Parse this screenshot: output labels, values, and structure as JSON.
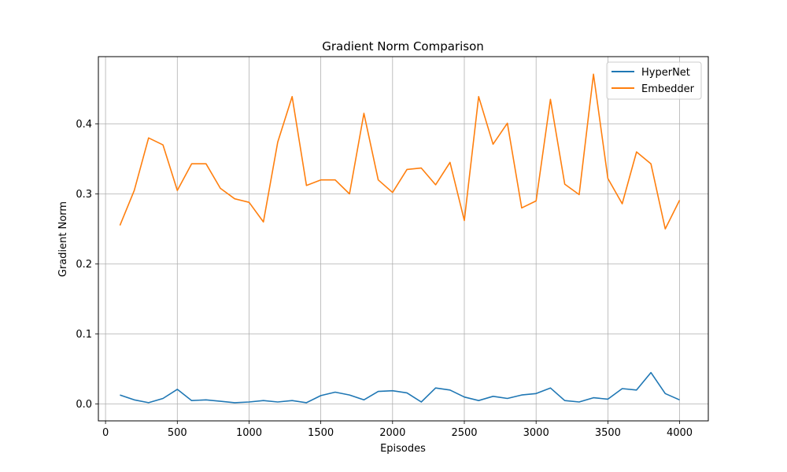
{
  "chart_data": {
    "type": "line",
    "title": "Gradient Norm Comparison",
    "xlabel": "Episodes",
    "ylabel": "Gradient Norm",
    "xlim": [
      -50,
      4200
    ],
    "ylim": [
      -0.024,
      0.496
    ],
    "xticks": [
      0,
      500,
      1000,
      1500,
      2000,
      2500,
      3000,
      3500,
      4000
    ],
    "yticks": [
      0.0,
      0.1,
      0.2,
      0.3,
      0.4
    ],
    "ytick_labels": [
      "0.0",
      "0.1",
      "0.2",
      "0.3",
      "0.4"
    ],
    "grid": true,
    "legend_position": "top-right",
    "x": [
      100,
      200,
      300,
      400,
      500,
      600,
      700,
      800,
      900,
      1000,
      1100,
      1200,
      1300,
      1400,
      1500,
      1600,
      1700,
      1800,
      1900,
      2000,
      2100,
      2200,
      2300,
      2400,
      2500,
      2600,
      2700,
      2800,
      2900,
      3000,
      3100,
      3200,
      3300,
      3400,
      3500,
      3600,
      3700,
      3800,
      3900,
      4000
    ],
    "series": [
      {
        "name": "HyperNet",
        "color": "#1f77b4",
        "values": [
          0.013,
          0.006,
          0.002,
          0.008,
          0.021,
          0.005,
          0.006,
          0.004,
          0.002,
          0.003,
          0.005,
          0.003,
          0.005,
          0.002,
          0.012,
          0.017,
          0.013,
          0.006,
          0.018,
          0.019,
          0.016,
          0.003,
          0.023,
          0.02,
          0.01,
          0.005,
          0.011,
          0.008,
          0.013,
          0.015,
          0.023,
          0.005,
          0.003,
          0.009,
          0.007,
          0.022,
          0.02,
          0.045,
          0.015,
          0.006
        ]
      },
      {
        "name": "Embedder",
        "color": "#ff7f0e",
        "values": [
          0.255,
          0.305,
          0.38,
          0.37,
          0.305,
          0.343,
          0.343,
          0.308,
          0.293,
          0.288,
          0.26,
          0.374,
          0.439,
          0.312,
          0.32,
          0.32,
          0.3,
          0.415,
          0.32,
          0.302,
          0.335,
          0.337,
          0.313,
          0.345,
          0.262,
          0.439,
          0.371,
          0.401,
          0.28,
          0.29,
          0.435,
          0.314,
          0.299,
          0.471,
          0.322,
          0.286,
          0.36,
          0.343,
          0.25,
          0.291
        ]
      }
    ]
  }
}
